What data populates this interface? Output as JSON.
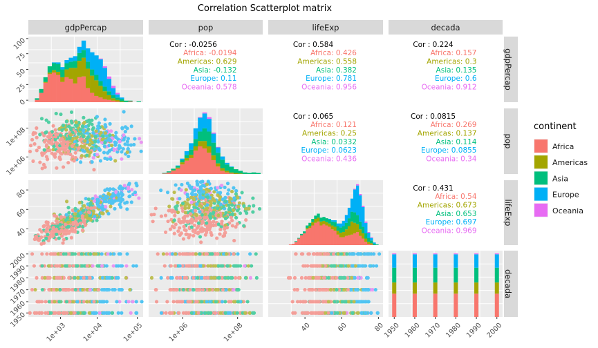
{
  "chart_data": {
    "type": "scatter",
    "title": "Correlation Scatterplot matrix",
    "variables": [
      "gdpPercap",
      "pop",
      "lifeExp",
      "decada"
    ],
    "legend": {
      "title": "continent",
      "position": "right",
      "entries": [
        {
          "name": "Africa",
          "color": "#F8766D"
        },
        {
          "name": "Americas",
          "color": "#A3A500"
        },
        {
          "name": "Asia",
          "color": "#00BF7D"
        },
        {
          "name": "Europe",
          "color": "#00B0F6"
        },
        {
          "name": "Oceania",
          "color": "#E76BF3"
        }
      ]
    },
    "correlations": [
      {
        "row": "gdpPercap",
        "col": "pop",
        "overall": "Cor : -0.0256",
        "groups": [
          "Africa: -0.0194",
          "Americas: 0.629",
          "Asia: -0.132",
          "Europe: 0.11",
          "Oceania: 0.578"
        ]
      },
      {
        "row": "gdpPercap",
        "col": "lifeExp",
        "overall": "Cor : 0.584",
        "groups": [
          "Africa: 0.426",
          "Americas: 0.558",
          "Asia: 0.382",
          "Europe: 0.781",
          "Oceania: 0.956"
        ]
      },
      {
        "row": "gdpPercap",
        "col": "decada",
        "overall": "Cor : 0.224",
        "groups": [
          "Africa: 0.157",
          "Americas: 0.3",
          "Asia: 0.135",
          "Europe: 0.6",
          "Oceania: 0.912"
        ]
      },
      {
        "row": "pop",
        "col": "lifeExp",
        "overall": "Cor : 0.065",
        "groups": [
          "Africa: 0.121",
          "Americas: 0.25",
          "Asia: 0.0332",
          "Europe: 0.0623",
          "Oceania: 0.436"
        ]
      },
      {
        "row": "pop",
        "col": "decada",
        "overall": "Cor : 0.0815",
        "groups": [
          "Africa: 0.269",
          "Americas: 0.137",
          "Asia: 0.114",
          "Europe: 0.0855",
          "Oceania: 0.34"
        ]
      },
      {
        "row": "lifeExp",
        "col": "decada",
        "overall": "Cor : 0.431",
        "groups": [
          "Africa: 0.54",
          "Americas: 0.673",
          "Asia: 0.653",
          "Europe: 0.697",
          "Oceania: 0.969"
        ]
      }
    ],
    "axes": {
      "x_bottom": [
        {
          "var": "gdpPercap",
          "ticks": [
            "1e+03",
            "1e+04",
            "1e+05"
          ]
        },
        {
          "var": "pop",
          "ticks": [
            "1e+06",
            "1e+08"
          ]
        },
        {
          "var": "lifeExp",
          "ticks": [
            "40",
            "60",
            "80"
          ]
        },
        {
          "var": "decada",
          "ticks": [
            "1950",
            "1960",
            "1970",
            "1980",
            "1990",
            "2000"
          ]
        }
      ],
      "y_left": [
        {
          "var": "gdpPercap",
          "ticks": [
            "0",
            "25",
            "50",
            "75",
            "100"
          ]
        },
        {
          "var": "pop",
          "ticks": [
            "1e+06",
            "1e+08"
          ]
        },
        {
          "var": "lifeExp",
          "ticks": [
            "40",
            "60",
            "80"
          ]
        },
        {
          "var": "decada",
          "ticks": [
            "1950",
            "1960",
            "1970",
            "1980",
            "1990",
            "2000"
          ]
        }
      ]
    },
    "diagonal_histograms": {
      "gdpPercap_counts_stacked": {
        "bins": 26,
        "Africa": [
          0,
          3,
          12,
          25,
          36,
          38,
          35,
          26,
          32,
          30,
          24,
          32,
          33,
          18,
          12,
          8,
          6,
          4,
          3,
          2,
          1,
          0,
          0,
          1,
          0,
          0
        ],
        "Americas": [
          0,
          0,
          0,
          1,
          2,
          3,
          4,
          6,
          10,
          14,
          20,
          21,
          24,
          25,
          22,
          20,
          15,
          10,
          6,
          3,
          2,
          1,
          0,
          0,
          0,
          0
        ],
        "Asia": [
          0,
          2,
          5,
          6,
          8,
          9,
          10,
          10,
          8,
          8,
          9,
          10,
          10,
          9,
          8,
          7,
          6,
          6,
          5,
          4,
          3,
          3,
          2,
          1,
          0,
          1
        ],
        "Europe": [
          0,
          0,
          0,
          0,
          0,
          1,
          2,
          3,
          4,
          5,
          6,
          8,
          12,
          17,
          22,
          25,
          28,
          24,
          16,
          9,
          4,
          2,
          0,
          0,
          0,
          0
        ],
        "Oceania": [
          0,
          0,
          0,
          0,
          0,
          0,
          0,
          0,
          0,
          0,
          0,
          0,
          0,
          0,
          0,
          0,
          1,
          2,
          3,
          3,
          2,
          0,
          0,
          0,
          0,
          0
        ]
      },
      "pop_counts_stacked": {
        "bins": 24,
        "Africa": [
          0,
          0,
          1,
          3,
          6,
          10,
          18,
          25,
          30,
          44,
          52,
          48,
          40,
          26,
          14,
          6,
          3,
          1,
          0,
          0,
          0,
          0,
          0,
          0
        ],
        "Americas": [
          0,
          0,
          0,
          0,
          1,
          2,
          4,
          5,
          6,
          8,
          10,
          14,
          12,
          9,
          6,
          5,
          3,
          2,
          2,
          1,
          0,
          0,
          0,
          0
        ],
        "Asia": [
          0,
          0,
          1,
          2,
          3,
          3,
          4,
          6,
          10,
          14,
          18,
          24,
          28,
          24,
          20,
          16,
          12,
          10,
          7,
          5,
          3,
          2,
          3,
          2
        ],
        "Europe": [
          0,
          0,
          0,
          0,
          0,
          1,
          3,
          7,
          12,
          20,
          26,
          28,
          24,
          17,
          10,
          6,
          3,
          1,
          0,
          0,
          0,
          0,
          0,
          0
        ],
        "Oceania": [
          0,
          0,
          0,
          0,
          0,
          0,
          0,
          0,
          0,
          0,
          1,
          2,
          3,
          2,
          1,
          0,
          0,
          0,
          0,
          0,
          0,
          0,
          0,
          0
        ]
      },
      "lifeExp_counts_stacked": {
        "bins": 32,
        "Africa": [
          1,
          2,
          5,
          10,
          15,
          18,
          24,
          26,
          30,
          34,
          36,
          30,
          32,
          30,
          28,
          24,
          22,
          16,
          12,
          12,
          14,
          15,
          16,
          18,
          20,
          14,
          10,
          5,
          2,
          1,
          0,
          0
        ],
        "Americas": [
          0,
          0,
          0,
          0,
          0,
          0,
          2,
          3,
          5,
          6,
          6,
          6,
          5,
          5,
          5,
          6,
          6,
          6,
          7,
          8,
          10,
          14,
          20,
          16,
          12,
          10,
          8,
          5,
          3,
          2,
          0,
          0
        ],
        "Asia": [
          0,
          0,
          1,
          1,
          2,
          3,
          4,
          5,
          5,
          5,
          6,
          6,
          6,
          6,
          6,
          6,
          7,
          7,
          8,
          9,
          10,
          12,
          15,
          16,
          14,
          12,
          10,
          8,
          6,
          4,
          2,
          1
        ],
        "Europe": [
          0,
          0,
          0,
          0,
          0,
          0,
          0,
          0,
          0,
          0,
          0,
          0,
          0,
          0,
          1,
          2,
          3,
          4,
          6,
          8,
          12,
          16,
          20,
          35,
          45,
          40,
          30,
          16,
          8,
          4,
          2,
          0
        ],
        "Oceania": [
          0,
          0,
          0,
          0,
          0,
          0,
          0,
          0,
          0,
          0,
          0,
          0,
          0,
          0,
          0,
          0,
          0,
          0,
          0,
          0,
          0,
          0,
          0,
          1,
          2,
          2,
          2,
          2,
          1,
          1,
          0,
          0
        ]
      },
      "decada_counts_stacked": {
        "years": [
          1950,
          1960,
          1970,
          1980,
          1990,
          2000
        ],
        "Africa": 104,
        "Americas": 50,
        "Asia": 66,
        "Europe": 60,
        "Oceania": 4
      }
    }
  }
}
